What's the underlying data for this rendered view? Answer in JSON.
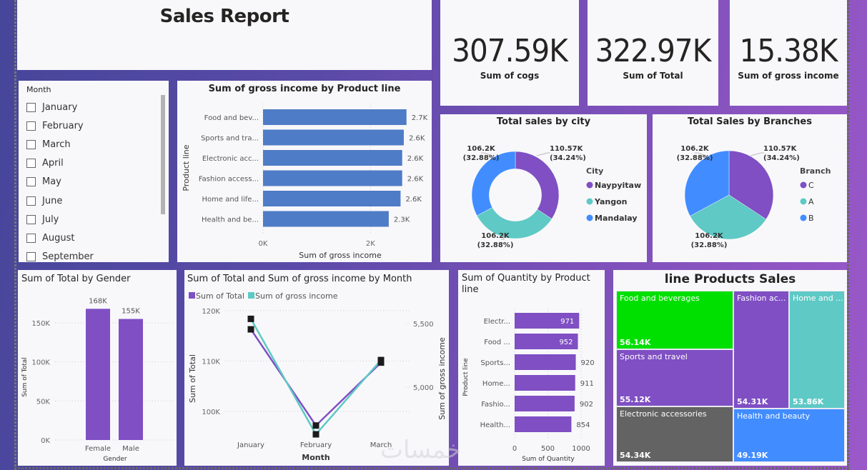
{
  "report": {
    "title": "Sales Report"
  },
  "kpis": [
    {
      "value": "307.59K",
      "label": "Sum of cogs"
    },
    {
      "value": "322.97K",
      "label": "Sum of Total"
    },
    {
      "value": "15.38K",
      "label": "Sum of gross income"
    }
  ],
  "slicer": {
    "header": "Month",
    "items": [
      "January",
      "February",
      "March",
      "April",
      "May",
      "June",
      "July",
      "August",
      "September"
    ]
  },
  "colors": {
    "purple": "#7f4fc3",
    "teal": "#5ec9c5",
    "blue": "#418cff",
    "bar_blue": "#4f7cc6",
    "green": "#00e000",
    "gray": "#636363"
  },
  "watermark": "خمسات",
  "chart_data": [
    {
      "id": "gross_income_by_product",
      "type": "bar",
      "orientation": "horizontal",
      "title": "Sum of gross income by Product line",
      "xlabel": "Sum of gross income",
      "ylabel": "Product line",
      "categories": [
        "Food and bev...",
        "Sports and tra...",
        "Electronic acc...",
        "Fashion access...",
        "Home and life...",
        "Health and be..."
      ],
      "values": [
        2670,
        2620,
        2590,
        2590,
        2560,
        2340
      ],
      "data_labels": [
        "2.7K",
        "2.6K",
        "2.6K",
        "2.6K",
        "2.6K",
        "2.3K"
      ],
      "xticks": [
        "0K",
        "2K"
      ],
      "xlim": [
        0,
        2900
      ],
      "grid": true
    },
    {
      "id": "sales_by_city",
      "type": "pie",
      "variant": "donut",
      "title": "Total sales by city",
      "legend_title": "City",
      "legend_position": "right",
      "labels": [
        "Naypyitaw",
        "Yangon",
        "Mandalay"
      ],
      "values": [
        110.57,
        106.2,
        106.2
      ],
      "data_labels": [
        "110.57K (34.24%)",
        "106.2K (32.88%)",
        "106.2K (32.88%)"
      ],
      "unit": "K"
    },
    {
      "id": "sales_by_branch",
      "type": "pie",
      "title": "Total Sales by Branches",
      "legend_title": "Branch",
      "legend_position": "right",
      "labels": [
        "C",
        "A",
        "B"
      ],
      "values": [
        110.57,
        106.2,
        106.2
      ],
      "data_labels": [
        "110.57K (34.24%)",
        "106.2K (32.88%)",
        "106.2K (32.88%)"
      ],
      "unit": "K"
    },
    {
      "id": "total_by_gender",
      "type": "bar",
      "title": "Sum of Total by Gender",
      "xlabel": "Gender",
      "ylabel": "Sum of Total",
      "categories": [
        "Female",
        "Male"
      ],
      "values": [
        168000,
        155000
      ],
      "data_labels": [
        "168K",
        "155K"
      ],
      "yticks": [
        "0K",
        "50K",
        "100K",
        "150K"
      ],
      "ylim": [
        0,
        150000
      ],
      "grid": true
    },
    {
      "id": "total_and_income_by_month",
      "type": "line",
      "title": "Sum of Total and Sum of gross income by Month",
      "xlabel": "Month",
      "ylabel": "Sum of Total",
      "y2label": "Sum of gross income",
      "legend_position": "top-left",
      "categories": [
        "January",
        "February",
        "March"
      ],
      "series": [
        {
          "name": "Sum of Total",
          "axis": "left",
          "values": [
            116300,
            97200,
            109700
          ]
        },
        {
          "name": "Sum of gross income",
          "axis": "right",
          "values": [
            5537,
            4629,
            5213
          ]
        }
      ],
      "yticks": [
        "100K",
        "110K",
        "120K"
      ],
      "ylim": [
        95000,
        120000
      ],
      "y2ticks": [
        "5,000",
        "5,500"
      ],
      "y2lim": [
        4600,
        5600
      ],
      "grid": true
    },
    {
      "id": "quantity_by_product",
      "type": "bar",
      "orientation": "horizontal",
      "title": "Sum of Quantity by Product line",
      "xlabel": "Sum of Quantity",
      "ylabel": "Product line",
      "categories": [
        "Electr...",
        "Food ...",
        "Sports...",
        "Home...",
        "Fashio...",
        "Health..."
      ],
      "values": [
        971,
        952,
        920,
        911,
        902,
        854
      ],
      "xticks": [
        "0",
        "500",
        "1000"
      ],
      "xlim": [
        0,
        1000
      ],
      "grid": true
    },
    {
      "id": "product_sales_treemap",
      "type": "treemap",
      "title": "line Products Sales",
      "labels": [
        "Food and beverages",
        "Sports and travel",
        "Electronic accessories",
        "Fashion ac...",
        "Home and ...",
        "Health and beauty"
      ],
      "values": [
        56.14,
        55.12,
        54.34,
        54.31,
        53.86,
        49.19
      ],
      "data_labels": [
        "56.14K",
        "55.12K",
        "54.34K",
        "54.31K",
        "53.86K",
        "49.19K"
      ]
    }
  ]
}
